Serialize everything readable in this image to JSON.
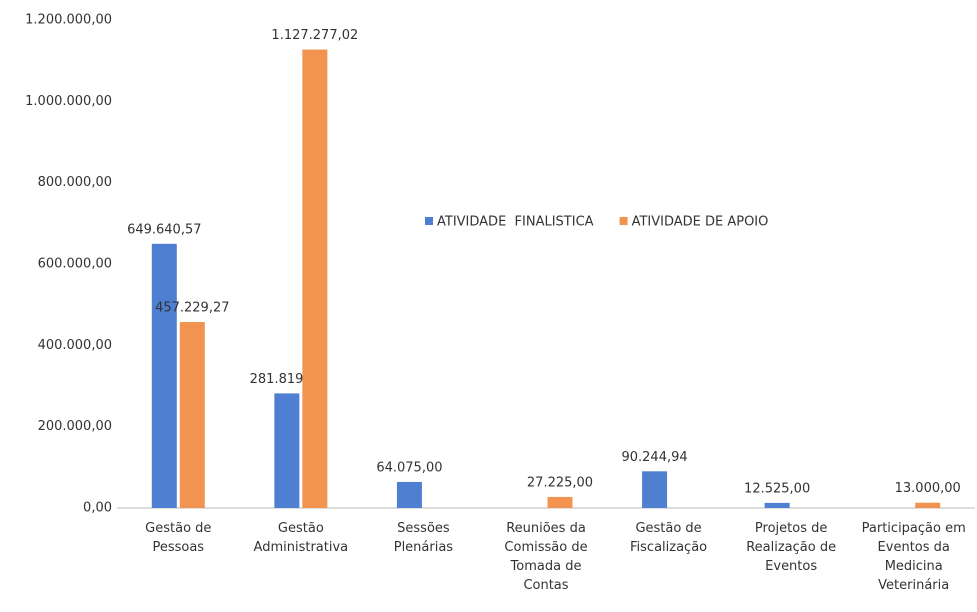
{
  "chart_data": {
    "type": "bar",
    "categories": [
      "Gestão de\nPessoas",
      "Gestão\nAdministrativa",
      "Sessões\nPlenárias",
      "Reuniões da\nComissão de\nTomada de\nContas",
      "Gestão de\nFiscalização",
      "Projetos de\nRealização de\nEventos",
      "Participação em\nEventos da\nMedicina\nVeterinária"
    ],
    "series": [
      {
        "name": "ATIVIDADE  FINALISTICA",
        "color": "#4f7fd1",
        "values": [
          649640.57,
          281819.26,
          64075.0,
          null,
          90244.94,
          12525.0,
          null
        ],
        "value_labels": [
          "649.640,57",
          "281.819,26",
          "64.075,00",
          null,
          "90.244,94",
          "12.525,00",
          null
        ]
      },
      {
        "name": "ATIVIDADE DE APOIO",
        "color": "#f2934f",
        "values": [
          457229.27,
          1127277.02,
          null,
          27225.0,
          null,
          null,
          13000.0
        ],
        "value_labels": [
          "457.229,27",
          "1.127.277,02",
          null,
          "27.225,00",
          null,
          null,
          "13.000,00"
        ]
      }
    ],
    "ylim": [
      0,
      1200000
    ],
    "yticks": [
      {
        "value": 0,
        "label": "0,00"
      },
      {
        "value": 200000,
        "label": "200.000,00"
      },
      {
        "value": 400000,
        "label": "400.000,00"
      },
      {
        "value": 600000,
        "label": "600.000,00"
      },
      {
        "value": 800000,
        "label": "800.000,00"
      },
      {
        "value": 1000000,
        "label": "1.000.000,00"
      },
      {
        "value": 1200000,
        "label": "1.200.000,00"
      }
    ],
    "grid": false
  }
}
